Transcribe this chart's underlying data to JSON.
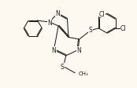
{
  "background_color": "#fdf8f0",
  "line_color": "#222222",
  "figsize": [
    1.74,
    1.13
  ],
  "dpi": 100,
  "xlim": [
    0,
    10
  ],
  "ylim": [
    0,
    7
  ],
  "lw": 0.75,
  "fs": 5.5
}
